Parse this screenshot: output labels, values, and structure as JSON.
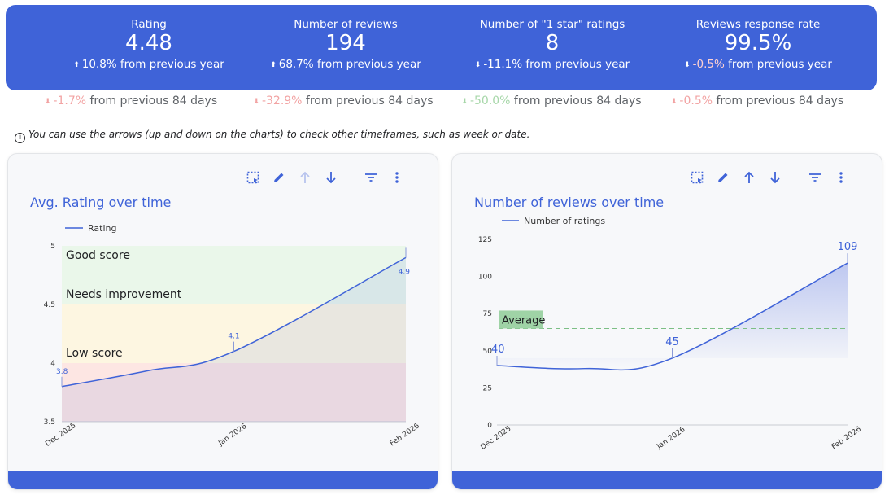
{
  "kpis": [
    {
      "label": "Rating",
      "value": "4.48",
      "arrow": "⬆",
      "pct": "10.8%",
      "suffix": " from previous year",
      "tone": "pos"
    },
    {
      "label": "Number of reviews",
      "value": "194",
      "arrow": "⬆",
      "pct": "68.7%",
      "suffix": " from previous year",
      "tone": "pos"
    },
    {
      "label": "Number of \"1 star\" ratings",
      "value": "8",
      "arrow": "⬇",
      "pct": "-11.1%",
      "suffix": " from previous year",
      "tone": "pos"
    },
    {
      "label": "Reviews response rate",
      "value": "99.5%",
      "arrow": "⬇",
      "pct": "-0.5%",
      "suffix": " from previous year",
      "tone": "neg"
    }
  ],
  "sub_kpis": [
    {
      "arrow": "⬇",
      "pct": "-1.7%",
      "suffix": " from previous 84 days",
      "color": "red"
    },
    {
      "arrow": "⬇",
      "pct": "-32.9%",
      "suffix": " from previous 84 days",
      "color": "red"
    },
    {
      "arrow": "⬇",
      "pct": "-50.0%",
      "suffix": " from previous 84 days",
      "color": "green"
    },
    {
      "arrow": "⬇",
      "pct": "-0.5%",
      "suffix": " from previous 84 days",
      "color": "red"
    }
  ],
  "info_text": "You can use the arrows (up and down on the charts) to check other timeframes, such as week or date.",
  "toolbar_icons": [
    "select-area-icon",
    "pencil-icon",
    "arrow-up-icon",
    "arrow-down-icon",
    "filter-icon",
    "more-vert-icon"
  ],
  "colors": {
    "accent": "#3f63d8",
    "good": "#eaf7ea",
    "improve": "#fdf6e1",
    "low": "#fde6e3",
    "average_fill": "#9fd3a6",
    "average_line": "#7cbf85"
  },
  "chart_data": [
    {
      "type": "line",
      "title": "Avg. Rating over time",
      "series": [
        {
          "name": "Rating",
          "values": [
            3.8,
            4.1,
            4.9
          ]
        }
      ],
      "x": [
        "Dec 2025",
        "Jan 2026",
        "Feb 2026"
      ],
      "ylim": [
        3.5,
        5
      ],
      "yticks": [
        "3.5",
        "4",
        "4.5",
        "5"
      ],
      "data_labels": [
        "3.8",
        "4.1",
        "4.9"
      ],
      "bands": [
        {
          "label": "Good score",
          "from": 4.5,
          "to": 5
        },
        {
          "label": "Needs improvement",
          "from": 4,
          "to": 4.5
        },
        {
          "label": "Low score",
          "from": 3.5,
          "to": 4
        }
      ],
      "legend": "top-left"
    },
    {
      "type": "area",
      "title": "Number of reviews over time",
      "series": [
        {
          "name": "Number of ratings",
          "values": [
            40,
            45,
            109
          ]
        }
      ],
      "x": [
        "Dec 2025",
        "Jan 2026",
        "Feb 2026"
      ],
      "ylim": [
        0,
        125
      ],
      "yticks": [
        "0",
        "25",
        "50",
        "75",
        "100",
        "125"
      ],
      "data_labels": [
        "40",
        "45",
        "109"
      ],
      "reference_line": {
        "label": "Average",
        "value": 65
      },
      "legend": "top-left"
    }
  ]
}
